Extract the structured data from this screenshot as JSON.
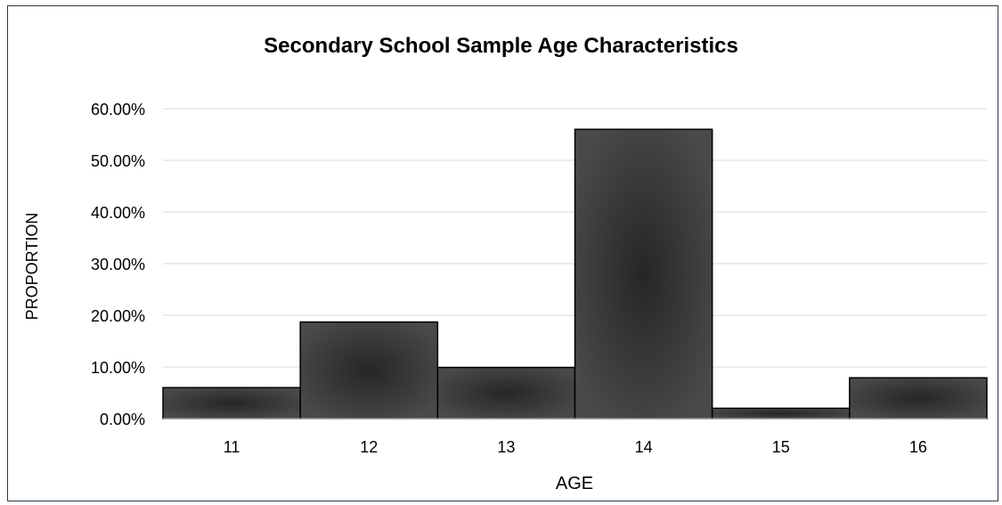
{
  "chart_data": {
    "type": "bar",
    "title": "Secondary School Sample Age Characteristics",
    "xlabel": "AGE",
    "ylabel": "PROPORTION",
    "categories": [
      "11",
      "12",
      "13",
      "14",
      "15",
      "16"
    ],
    "values": [
      6.0,
      18.7,
      9.9,
      56.0,
      2.0,
      7.9
    ],
    "ylim": [
      0,
      60
    ],
    "yticks": [
      "0.00%",
      "10.00%",
      "20.00%",
      "30.00%",
      "40.00%",
      "50.00%",
      "60.00%"
    ],
    "grid": true,
    "legend": "none",
    "colors": {
      "bar_center": "#2a2a2a",
      "bar_edge": "#4a4a4a",
      "bar_stroke": "#000000",
      "grid": "#d9d9d9",
      "frame": "#1f3a5a"
    }
  }
}
